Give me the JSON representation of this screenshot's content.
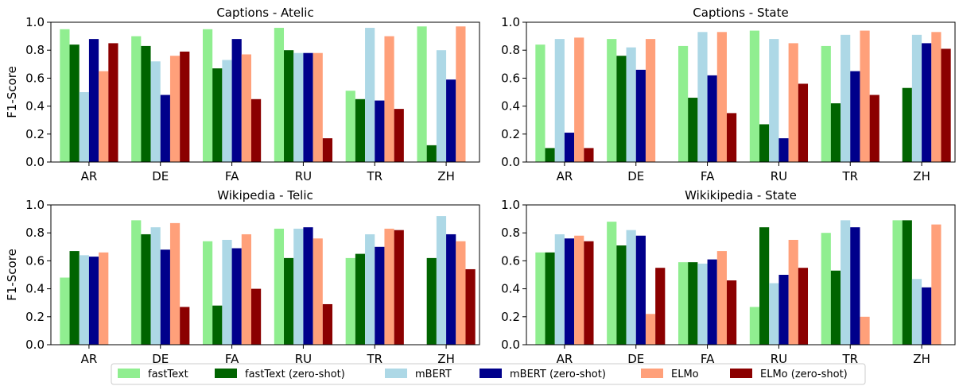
{
  "chart_data": [
    {
      "type": "bar",
      "title": "Captions - Atelic",
      "xlabel": "",
      "ylabel": "F1-Score",
      "ylim": [
        0,
        1.0
      ],
      "yticks": [
        "0.0",
        "0.2",
        "0.4",
        "0.6",
        "0.8",
        "1.0"
      ],
      "grid": false,
      "categories": [
        "AR",
        "DE",
        "FA",
        "RU",
        "TR",
        "ZH"
      ],
      "series": [
        {
          "name": "fastText",
          "values": [
            0.95,
            0.9,
            0.95,
            0.96,
            0.51,
            0.97
          ]
        },
        {
          "name": "fastText (zero-shot)",
          "values": [
            0.84,
            0.83,
            0.67,
            0.8,
            0.45,
            0.12
          ]
        },
        {
          "name": "mBERT",
          "values": [
            0.5,
            0.72,
            0.73,
            0.78,
            0.96,
            0.8
          ]
        },
        {
          "name": "mBERT (zero-shot)",
          "values": [
            0.88,
            0.48,
            0.88,
            0.78,
            0.44,
            0.59
          ]
        },
        {
          "name": "ELMo",
          "values": [
            0.65,
            0.76,
            0.77,
            0.78,
            0.9,
            0.97
          ]
        },
        {
          "name": "ELMo (zero-shot)",
          "values": [
            0.85,
            0.79,
            0.45,
            0.17,
            0.38,
            null
          ]
        }
      ]
    },
    {
      "type": "bar",
      "title": "Captions - State",
      "xlabel": "",
      "ylabel": "",
      "ylim": [
        0,
        1.0
      ],
      "yticks": [
        "0.0",
        "0.2",
        "0.4",
        "0.6",
        "0.8",
        "1.0"
      ],
      "grid": false,
      "categories": [
        "AR",
        "DE",
        "FA",
        "RU",
        "TR",
        "ZH"
      ],
      "series": [
        {
          "name": "fastText",
          "values": [
            0.84,
            0.88,
            0.83,
            0.94,
            0.83,
            null
          ]
        },
        {
          "name": "fastText (zero-shot)",
          "values": [
            0.1,
            0.76,
            0.46,
            0.27,
            0.42,
            0.53
          ]
        },
        {
          "name": "mBERT",
          "values": [
            0.88,
            0.82,
            0.93,
            0.88,
            0.91,
            0.91
          ]
        },
        {
          "name": "mBERT (zero-shot)",
          "values": [
            0.21,
            0.66,
            0.62,
            0.17,
            0.65,
            0.85
          ]
        },
        {
          "name": "ELMo",
          "values": [
            0.89,
            0.88,
            0.93,
            0.85,
            0.94,
            0.93
          ]
        },
        {
          "name": "ELMo (zero-shot)",
          "values": [
            0.1,
            null,
            0.35,
            0.56,
            0.48,
            0.81
          ]
        }
      ]
    },
    {
      "type": "bar",
      "title": "Wikipedia - Telic",
      "xlabel": "",
      "ylabel": "F1-Score",
      "ylim": [
        0,
        1.0
      ],
      "yticks": [
        "0.0",
        "0.2",
        "0.4",
        "0.6",
        "0.8",
        "1.0"
      ],
      "grid": false,
      "categories": [
        "AR",
        "DE",
        "FA",
        "RU",
        "TR",
        "ZH"
      ],
      "series": [
        {
          "name": "fastText",
          "values": [
            0.48,
            0.89,
            0.74,
            0.83,
            0.62,
            null
          ]
        },
        {
          "name": "fastText (zero-shot)",
          "values": [
            0.67,
            0.79,
            0.28,
            0.62,
            0.65,
            0.62
          ]
        },
        {
          "name": "mBERT",
          "values": [
            0.64,
            0.84,
            0.75,
            0.83,
            0.79,
            0.92
          ]
        },
        {
          "name": "mBERT (zero-shot)",
          "values": [
            0.63,
            0.68,
            0.69,
            0.84,
            0.7,
            0.79
          ]
        },
        {
          "name": "ELMo",
          "values": [
            0.66,
            0.87,
            0.79,
            0.76,
            0.83,
            0.74
          ]
        },
        {
          "name": "ELMo (zero-shot)",
          "values": [
            null,
            0.27,
            0.4,
            0.29,
            0.82,
            0.54
          ]
        }
      ]
    },
    {
      "type": "bar",
      "title": "Wikikipedia - State",
      "xlabel": "",
      "ylabel": "",
      "ylim": [
        0,
        1.0
      ],
      "yticks": [
        "0.0",
        "0.2",
        "0.4",
        "0.6",
        "0.8",
        "1.0"
      ],
      "grid": false,
      "categories": [
        "AR",
        "DE",
        "FA",
        "RU",
        "TR",
        "ZH"
      ],
      "series": [
        {
          "name": "fastText",
          "values": [
            0.66,
            0.88,
            0.59,
            0.27,
            0.8,
            0.89
          ]
        },
        {
          "name": "fastText (zero-shot)",
          "values": [
            0.66,
            0.71,
            0.59,
            0.84,
            0.53,
            0.89
          ]
        },
        {
          "name": "mBERT",
          "values": [
            0.79,
            0.82,
            0.58,
            0.44,
            0.89,
            0.47
          ]
        },
        {
          "name": "mBERT (zero-shot)",
          "values": [
            0.76,
            0.78,
            0.61,
            0.5,
            0.84,
            0.41
          ]
        },
        {
          "name": "ELMo",
          "values": [
            0.78,
            0.22,
            0.67,
            0.75,
            0.2,
            0.86
          ]
        },
        {
          "name": "ELMo (zero-shot)",
          "values": [
            0.74,
            0.55,
            0.46,
            0.55,
            null,
            null
          ]
        }
      ]
    }
  ],
  "legend": {
    "placement": "bottom-center",
    "entries": [
      "fastText",
      "fastText (zero-shot)",
      "mBERT",
      "mBERT (zero-shot)",
      "ELMo",
      "ELMo (zero-shot)"
    ]
  },
  "colors": {
    "fastText": "#90ee90",
    "fastText (zero-shot)": "#006400",
    "mBERT": "#add8e6",
    "mBERT (zero-shot)": "#00008b",
    "ELMo": "#ffa07a",
    "ELMo (zero-shot)": "#8b0000"
  }
}
